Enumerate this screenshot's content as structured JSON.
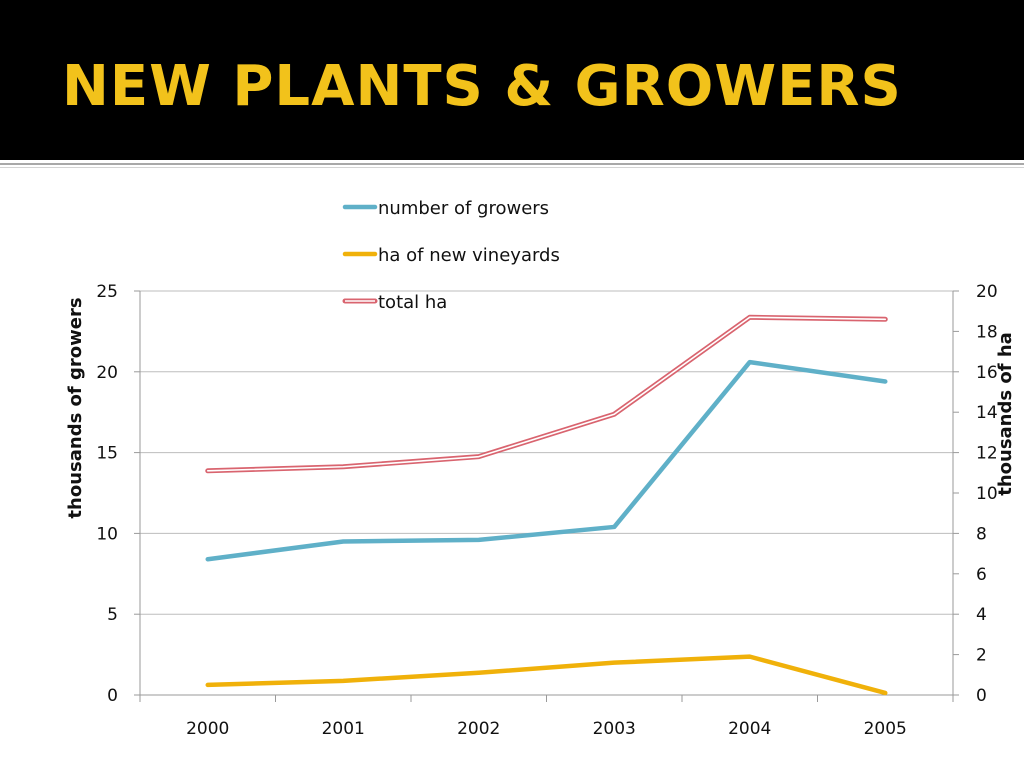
{
  "slide": {
    "title": "NEW PLANTS & GROWERS",
    "title_color": "#f2c21b",
    "header_bg": "#000000"
  },
  "chart_data": {
    "type": "line",
    "x": [
      "2000",
      "2001",
      "2002",
      "2003",
      "2004",
      "2005"
    ],
    "title": "",
    "y_left": {
      "label": "thousands of growers",
      "lim": [
        0,
        25
      ],
      "ticks": [
        0,
        5,
        10,
        15,
        20,
        25
      ]
    },
    "y_right": {
      "label": "thousands of ha",
      "lim": [
        0,
        20
      ],
      "ticks": [
        0,
        2,
        4,
        6,
        8,
        10,
        12,
        14,
        16,
        18,
        20
      ]
    },
    "grid": "horizontal",
    "legend_placement": "top-center",
    "series": [
      {
        "name": "number of growers",
        "axis": "left",
        "color": "#5fb0c8",
        "style": "solid",
        "values": [
          8.4,
          9.5,
          9.6,
          10.4,
          20.6,
          19.4
        ]
      },
      {
        "name": "ha of new vineyards",
        "axis": "right",
        "color": "#f0b10a",
        "style": "solid",
        "values": [
          0.5,
          0.7,
          1.1,
          1.6,
          1.9,
          0.1
        ]
      },
      {
        "name": "total ha",
        "axis": "right",
        "color": "#d9646f",
        "style": "double",
        "values": [
          11.1,
          11.3,
          11.8,
          13.9,
          18.7,
          18.6
        ]
      }
    ]
  }
}
